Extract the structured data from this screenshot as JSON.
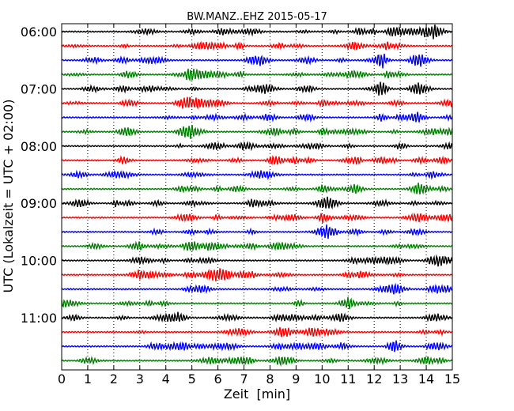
{
  "chart_data": {
    "type": "line",
    "title": "BW.MANZ..EHZ 2015-05-17",
    "xlabel": "Zeit  [min]",
    "ylabel": "UTC (Lokalzeit = UTC + 02:00)",
    "xlim": [
      0,
      15
    ],
    "x_ticks": [
      "0",
      "1",
      "2",
      "3",
      "4",
      "5",
      "6",
      "7",
      "8",
      "9",
      "10",
      "11",
      "12",
      "13",
      "14",
      "15"
    ],
    "y_tick_labels": [
      "06:00",
      "07:00",
      "08:00",
      "09:00",
      "10:00",
      "11:00"
    ],
    "trace_interval_minutes": 15,
    "trace_start_labels_every": 4,
    "grid": "vertical dotted",
    "trace_colors": [
      "#000000",
      "#ff0000",
      "#0000ff",
      "#008000"
    ],
    "trace_count": 24
  }
}
